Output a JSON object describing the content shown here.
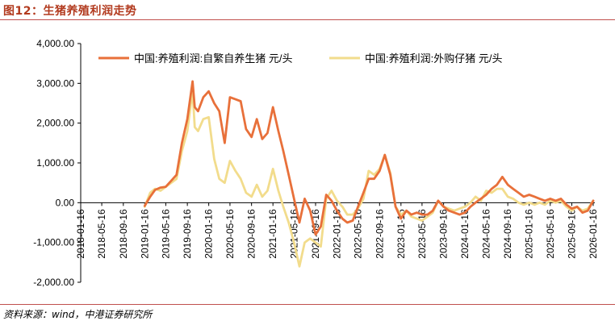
{
  "header": {
    "title": "图12：生猪养殖利润走势"
  },
  "footer": {
    "source": "资料来源：wind，中港证券研究所"
  },
  "colors": {
    "self_bred": "#e8703a",
    "purchased": "#f2dc8c",
    "title": "#b23a1e",
    "rule": "#c0504d"
  },
  "chart_data": {
    "type": "line",
    "title": "",
    "xlabel": "",
    "ylabel": "",
    "ylim": [
      -2000,
      4000
    ],
    "yticks": [
      "4,000.00",
      "3,000.00",
      "2,000.00",
      "1,000.00",
      "0.00",
      "-1,000.00",
      "-2,000.00"
    ],
    "xticks": [
      "2018-01-16",
      "2018-05-16",
      "2018-09-16",
      "2019-01-16",
      "2019-05-16",
      "2019-09-16",
      "2020-01-16",
      "2020-05-16",
      "2020-09-16",
      "2021-01-16",
      "2021-05-16",
      "2021-09-16",
      "2022-01-16",
      "2022-05-16",
      "2022-09-16",
      "2023-01-16",
      "2023-05-16",
      "2023-09-16",
      "2024-01-16",
      "2024-05-16",
      "2024-09-16",
      "2025-01-16",
      "2025-05-16",
      "2025-09-16",
      "2026-01-16"
    ],
    "grid": false,
    "legend": "top",
    "series": [
      {
        "name": "中国:养殖利润:自繁自养生猪 元/头",
        "points": [
          [
            "2019-01-16",
            -80
          ],
          [
            "2019-02-16",
            150
          ],
          [
            "2019-03-16",
            320
          ],
          [
            "2019-04-16",
            380
          ],
          [
            "2019-05-16",
            400
          ],
          [
            "2019-06-16",
            550
          ],
          [
            "2019-07-16",
            700
          ],
          [
            "2019-08-16",
            1500
          ],
          [
            "2019-09-16",
            2100
          ],
          [
            "2019-10-16",
            3050
          ],
          [
            "2019-10-28",
            2400
          ],
          [
            "2019-11-16",
            2300
          ],
          [
            "2019-12-16",
            2650
          ],
          [
            "2020-01-16",
            2800
          ],
          [
            "2020-02-16",
            2500
          ],
          [
            "2020-03-16",
            2300
          ],
          [
            "2020-04-16",
            1500
          ],
          [
            "2020-05-16",
            2650
          ],
          [
            "2020-06-16",
            2600
          ],
          [
            "2020-07-16",
            2550
          ],
          [
            "2020-08-16",
            1850
          ],
          [
            "2020-09-16",
            1650
          ],
          [
            "2020-10-16",
            2100
          ],
          [
            "2020-11-16",
            1600
          ],
          [
            "2020-12-16",
            1750
          ],
          [
            "2021-01-16",
            2400
          ],
          [
            "2021-02-16",
            1800
          ],
          [
            "2021-03-16",
            1300
          ],
          [
            "2021-04-16",
            700
          ],
          [
            "2021-05-16",
            100
          ],
          [
            "2021-06-16",
            -500
          ],
          [
            "2021-07-16",
            100
          ],
          [
            "2021-08-16",
            -200
          ],
          [
            "2021-09-16",
            -800
          ],
          [
            "2021-10-16",
            -600
          ],
          [
            "2021-11-16",
            200
          ],
          [
            "2021-12-16",
            50
          ],
          [
            "2022-01-16",
            -200
          ],
          [
            "2022-02-16",
            -400
          ],
          [
            "2022-03-16",
            -500
          ],
          [
            "2022-04-16",
            -450
          ],
          [
            "2022-05-16",
            -100
          ],
          [
            "2022-06-16",
            250
          ],
          [
            "2022-07-16",
            600
          ],
          [
            "2022-08-16",
            600
          ],
          [
            "2022-09-16",
            800
          ],
          [
            "2022-10-16",
            1200
          ],
          [
            "2022-11-16",
            700
          ],
          [
            "2022-12-16",
            -100
          ],
          [
            "2023-01-16",
            -400
          ],
          [
            "2023-02-16",
            -200
          ],
          [
            "2023-03-16",
            -300
          ],
          [
            "2023-04-16",
            -250
          ],
          [
            "2023-05-16",
            -300
          ],
          [
            "2023-06-16",
            -300
          ],
          [
            "2023-07-16",
            -200
          ],
          [
            "2023-08-16",
            50
          ],
          [
            "2023-09-16",
            -100
          ],
          [
            "2023-10-16",
            -200
          ],
          [
            "2023-11-16",
            -250
          ],
          [
            "2023-12-16",
            -300
          ],
          [
            "2024-01-16",
            -250
          ],
          [
            "2024-02-16",
            -100
          ],
          [
            "2024-03-16",
            0
          ],
          [
            "2024-04-16",
            100
          ],
          [
            "2024-05-16",
            200
          ],
          [
            "2024-06-16",
            350
          ],
          [
            "2024-07-16",
            450
          ],
          [
            "2024-08-16",
            650
          ],
          [
            "2024-09-16",
            450
          ],
          [
            "2024-10-16",
            350
          ],
          [
            "2024-11-16",
            250
          ],
          [
            "2024-12-16",
            150
          ],
          [
            "2025-01-16",
            200
          ],
          [
            "2025-02-16",
            150
          ],
          [
            "2025-03-16",
            100
          ],
          [
            "2025-04-16",
            50
          ],
          [
            "2025-05-16",
            100
          ],
          [
            "2025-06-16",
            50
          ],
          [
            "2025-07-16",
            100
          ],
          [
            "2025-08-16",
            -50
          ],
          [
            "2025-09-16",
            -150
          ],
          [
            "2025-10-16",
            -100
          ],
          [
            "2025-11-16",
            -250
          ],
          [
            "2025-12-16",
            -200
          ],
          [
            "2026-01-16",
            50
          ]
        ]
      },
      {
        "name": "中国:养殖利润:外购仔猪 元/头",
        "points": [
          [
            "2019-01-16",
            -100
          ],
          [
            "2019-02-16",
            250
          ],
          [
            "2019-03-16",
            350
          ],
          [
            "2019-04-16",
            300
          ],
          [
            "2019-05-16",
            400
          ],
          [
            "2019-06-16",
            500
          ],
          [
            "2019-07-16",
            600
          ],
          [
            "2019-08-16",
            1300
          ],
          [
            "2019-09-16",
            1800
          ],
          [
            "2019-10-16",
            2800
          ],
          [
            "2019-10-28",
            1900
          ],
          [
            "2019-11-16",
            1800
          ],
          [
            "2019-12-16",
            2100
          ],
          [
            "2020-01-16",
            2150
          ],
          [
            "2020-02-16",
            1100
          ],
          [
            "2020-03-16",
            600
          ],
          [
            "2020-04-16",
            500
          ],
          [
            "2020-05-16",
            1050
          ],
          [
            "2020-06-16",
            800
          ],
          [
            "2020-07-16",
            600
          ],
          [
            "2020-08-16",
            250
          ],
          [
            "2020-09-16",
            150
          ],
          [
            "2020-10-16",
            450
          ],
          [
            "2020-11-16",
            150
          ],
          [
            "2020-12-16",
            300
          ],
          [
            "2021-01-16",
            850
          ],
          [
            "2021-02-16",
            300
          ],
          [
            "2021-03-16",
            -100
          ],
          [
            "2021-04-16",
            -500
          ],
          [
            "2021-05-16",
            -1000
          ],
          [
            "2021-06-16",
            -1600
          ],
          [
            "2021-07-16",
            -1000
          ],
          [
            "2021-08-16",
            -900
          ],
          [
            "2021-09-16",
            -1000
          ],
          [
            "2021-10-16",
            -1100
          ],
          [
            "2021-11-16",
            100
          ],
          [
            "2021-12-16",
            300
          ],
          [
            "2022-01-16",
            50
          ],
          [
            "2022-02-16",
            -100
          ],
          [
            "2022-03-16",
            -300
          ],
          [
            "2022-04-16",
            -300
          ],
          [
            "2022-05-16",
            -150
          ],
          [
            "2022-06-16",
            100
          ],
          [
            "2022-07-16",
            800
          ],
          [
            "2022-08-16",
            700
          ],
          [
            "2022-09-16",
            850
          ],
          [
            "2022-10-16",
            1200
          ],
          [
            "2022-11-16",
            750
          ],
          [
            "2022-12-16",
            -100
          ],
          [
            "2023-01-16",
            -300
          ],
          [
            "2023-02-16",
            -200
          ],
          [
            "2023-03-16",
            -350
          ],
          [
            "2023-04-16",
            -400
          ],
          [
            "2023-05-16",
            -450
          ],
          [
            "2023-06-16",
            -350
          ],
          [
            "2023-07-16",
            -250
          ],
          [
            "2023-08-16",
            50
          ],
          [
            "2023-09-16",
            -100
          ],
          [
            "2023-10-16",
            -150
          ],
          [
            "2023-11-16",
            -200
          ],
          [
            "2023-12-16",
            -150
          ],
          [
            "2024-01-16",
            -100
          ],
          [
            "2024-02-16",
            0
          ],
          [
            "2024-03-16",
            150
          ],
          [
            "2024-04-16",
            50
          ],
          [
            "2024-05-16",
            300
          ],
          [
            "2024-06-16",
            250
          ],
          [
            "2024-07-16",
            350
          ],
          [
            "2024-08-16",
            350
          ],
          [
            "2024-09-16",
            150
          ],
          [
            "2024-10-16",
            100
          ],
          [
            "2024-11-16",
            0
          ],
          [
            "2024-12-16",
            -50
          ],
          [
            "2025-01-16",
            0
          ],
          [
            "2025-02-16",
            -50
          ],
          [
            "2025-03-16",
            0
          ],
          [
            "2025-04-16",
            -50
          ],
          [
            "2025-05-16",
            50
          ],
          [
            "2025-06-16",
            0
          ],
          [
            "2025-07-16",
            50
          ],
          [
            "2025-08-16",
            -100
          ],
          [
            "2025-09-16",
            -200
          ],
          [
            "2025-10-16",
            -100
          ],
          [
            "2025-11-16",
            -200
          ],
          [
            "2025-12-16",
            -150
          ],
          [
            "2026-01-16",
            50
          ]
        ]
      }
    ]
  }
}
